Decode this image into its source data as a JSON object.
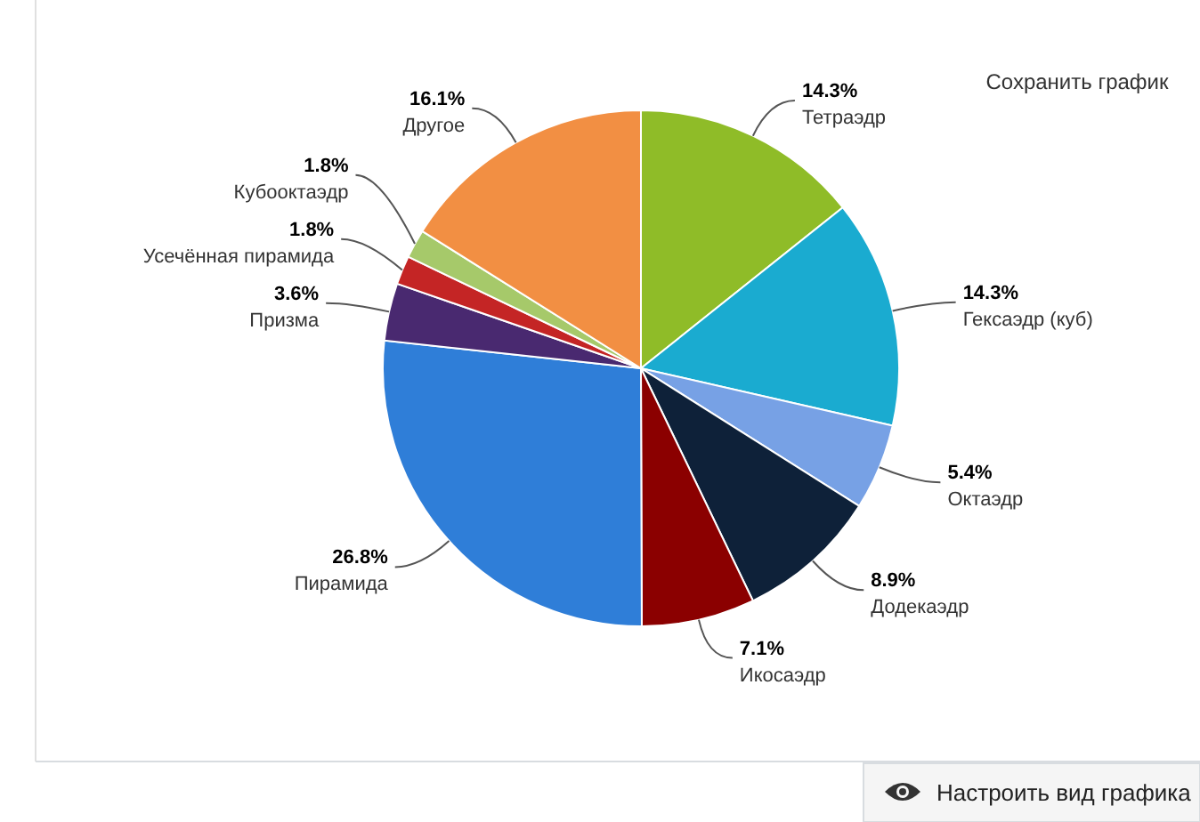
{
  "chart_data": {
    "type": "pie",
    "categories": [
      "Тетраэдр",
      "Гексаэдр (куб)",
      "Октаэдр",
      "Додекаэдр",
      "Икосаэдр",
      "Пирамида",
      "Призма",
      "Усечённая пирамида",
      "Кубооктаэдр",
      "Другое"
    ],
    "values": [
      14.3,
      14.3,
      5.4,
      8.9,
      7.1,
      26.8,
      3.6,
      1.8,
      1.8,
      16.1
    ],
    "value_labels": [
      "14.3%",
      "14.3%",
      "5.4%",
      "8.9%",
      "7.1%",
      "26.8%",
      "3.6%",
      "1.8%",
      "1.8%",
      "16.1%"
    ],
    "colors": [
      "#8fbc28",
      "#1aabd0",
      "#77a1e5",
      "#0e2139",
      "#8b0000",
      "#2f7ed8",
      "#492970",
      "#c42525",
      "#a6c96a",
      "#f28f43"
    ],
    "annotations": [
      "Сохранить график",
      "Настроить вид графика"
    ]
  }
}
